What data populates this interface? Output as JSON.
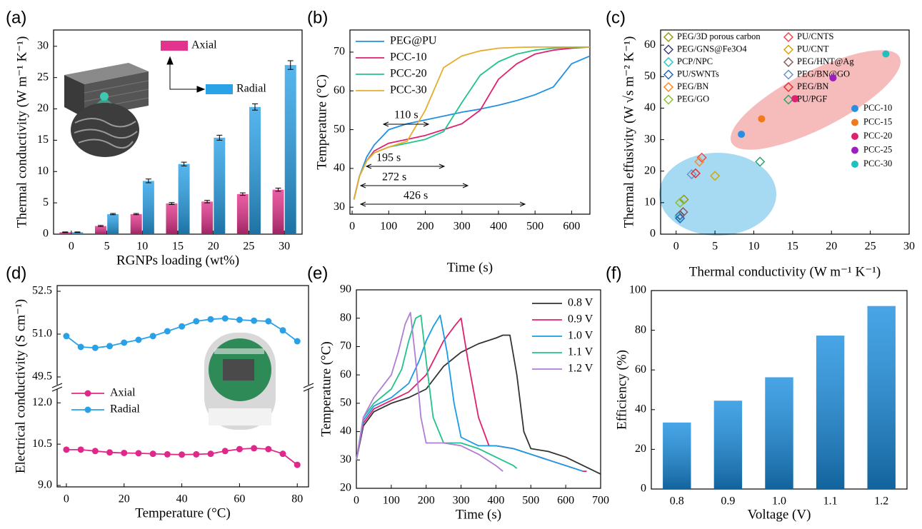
{
  "chart_data": [
    {
      "type": "bar",
      "panel_label": "(a)",
      "xlabel": "RGNPs loading (wt%)",
      "ylabel": "Thermal conductivity (W m⁻¹ K⁻¹)",
      "categories": [
        "0",
        "5",
        "10",
        "15",
        "20",
        "25",
        "30"
      ],
      "series": [
        {
          "name": "Axial",
          "color": "#e2348c",
          "values": [
            0.3,
            1.3,
            3.2,
            4.9,
            5.2,
            6.4,
            7.1
          ],
          "errors": [
            0.05,
            0.1,
            0.1,
            0.15,
            0.2,
            0.2,
            0.25
          ]
        },
        {
          "name": "Radial",
          "color": "#2aa2e8",
          "values": [
            0.3,
            3.2,
            8.5,
            11.2,
            15.4,
            20.3,
            27.0
          ],
          "errors": [
            0.05,
            0.1,
            0.3,
            0.3,
            0.4,
            0.5,
            0.7
          ]
        }
      ],
      "ylim": [
        0,
        32.6
      ],
      "yticks": [
        0,
        5,
        10,
        15,
        20,
        25,
        30
      ]
    },
    {
      "type": "line",
      "panel_label": "(b)",
      "xlabel": "Time (s)",
      "ylabel": "Temperature (°C)",
      "x": [
        5,
        20,
        40,
        60,
        100,
        150,
        200,
        250,
        300,
        350,
        400,
        450,
        500,
        550,
        600,
        650
      ],
      "series": [
        {
          "name": "PEG@PU",
          "color": "#1e90e6",
          "values": [
            32,
            38,
            43,
            46,
            50,
            51.5,
            52.5,
            53.5,
            54.5,
            55.3,
            56.3,
            57.5,
            59,
            61,
            67,
            69
          ]
        },
        {
          "name": "PCC-10",
          "color": "#e0206e",
          "values": [
            32,
            38,
            42,
            44.5,
            46.5,
            47.5,
            48.5,
            50,
            51.5,
            55,
            63,
            67,
            69.5,
            70.5,
            71,
            71.3
          ]
        },
        {
          "name": "PCC-20",
          "color": "#1fc48a",
          "values": [
            32,
            38,
            42,
            44,
            45.5,
            46.5,
            47.5,
            49.5,
            57,
            64,
            67.5,
            69.5,
            70.5,
            71,
            71.2,
            71.3
          ]
        },
        {
          "name": "PCC-30",
          "color": "#e6ac2e",
          "values": [
            32,
            38,
            42,
            44,
            45.5,
            47,
            55,
            66,
            69,
            70.3,
            71,
            71.2,
            71.3,
            71.3,
            71.3,
            71.3
          ]
        }
      ],
      "annotations": [
        "110 s",
        "195 s",
        "272 s",
        "426 s"
      ],
      "xlim": [
        -6,
        650
      ],
      "xticks": [
        0,
        100,
        200,
        300,
        400,
        500,
        600
      ],
      "ylim": [
        28.2,
        75.7
      ],
      "yticks": [
        30,
        40,
        50,
        60,
        70
      ]
    },
    {
      "type": "scatter",
      "panel_label": "(c)",
      "xlabel": "Thermal conductivity (W m⁻¹ K⁻¹)",
      "ylabel": "Thermal effusivity (W √s m⁻² K⁻¹)",
      "series": [
        {
          "name": "PEG/3D porous carbon",
          "color": "#9a9a10",
          "marker": "diamond",
          "x": [
            1.0
          ],
          "values": [
            11
          ]
        },
        {
          "name": "PU/CNTS",
          "color": "#f04848",
          "marker": "diamond",
          "x": [
            3.3
          ],
          "values": [
            24.3
          ]
        },
        {
          "name": "PEG/GNS@Fe3O4",
          "color": "#3c4470",
          "marker": "diamond",
          "x": [
            0.5
          ],
          "values": [
            6
          ]
        },
        {
          "name": "PU/CNT",
          "color": "#d9a400",
          "marker": "diamond",
          "x": [
            5.0
          ],
          "values": [
            18.5
          ]
        },
        {
          "name": "PCP/NPC",
          "color": "#2cc4c4",
          "marker": "diamond",
          "x": [
            0.4
          ],
          "values": [
            5.5
          ]
        },
        {
          "name": "PEG/HNT@Ag",
          "color": "#8a5a5a",
          "marker": "diamond",
          "x": [
            0.9
          ],
          "values": [
            7
          ]
        },
        {
          "name": "PU/SWNTs",
          "color": "#2a62c0",
          "marker": "diamond",
          "x": [
            0.5
          ],
          "values": [
            5
          ]
        },
        {
          "name": "PEG/BN@GO",
          "color": "#6d92c8",
          "marker": "diamond",
          "x": [
            2.0
          ],
          "values": [
            19
          ]
        },
        {
          "name": "PEG/BN",
          "color": "#ff8820",
          "marker": "diamond",
          "x": [
            3.0
          ],
          "values": [
            23
          ]
        },
        {
          "name": "PEG/BN",
          "color": "#e83030",
          "marker": "diamond",
          "x": [
            2.5
          ],
          "values": [
            19.3
          ]
        },
        {
          "name": "PEG/GO",
          "color": "#88c030",
          "marker": "diamond",
          "x": [
            0.5
          ],
          "values": [
            10
          ]
        },
        {
          "name": "PU/PGF",
          "color": "#30a070",
          "marker": "diamond",
          "x": [
            10.8
          ],
          "values": [
            23
          ]
        },
        {
          "name": "PCC-10",
          "color": "#2a8ee0",
          "marker": "circle",
          "x": [
            8.4
          ],
          "values": [
            31.7
          ]
        },
        {
          "name": "PCC-15",
          "color": "#f07a20",
          "marker": "circle",
          "x": [
            11.0
          ],
          "values": [
            36.6
          ]
        },
        {
          "name": "PCC-20",
          "color": "#e0206e",
          "marker": "circle",
          "x": [
            15.3
          ],
          "values": [
            43
          ]
        },
        {
          "name": "PCC-25",
          "color": "#9a1ec0",
          "marker": "circle",
          "x": [
            20.2
          ],
          "values": [
            49.6
          ]
        },
        {
          "name": "PCC-30",
          "color": "#20c0c0",
          "marker": "circle",
          "x": [
            27.0
          ],
          "values": [
            57.2
          ]
        }
      ],
      "xlim": [
        -2,
        30
      ],
      "xticks": [
        0,
        5,
        10,
        15,
        20,
        25,
        30
      ],
      "ylim": [
        0,
        64.8
      ],
      "yticks": [
        0,
        10,
        20,
        30,
        40,
        50,
        60
      ]
    },
    {
      "type": "line",
      "panel_label": "(d)",
      "xlabel": "Temperature (°C)",
      "ylabel": "Electrical conductivity (S cm⁻¹)",
      "x": [
        0,
        5,
        10,
        15,
        20,
        25,
        30,
        35,
        40,
        45,
        50,
        55,
        60,
        65,
        70,
        75,
        80
      ],
      "series": [
        {
          "name": "Axial",
          "color": "#e0288a",
          "marker": "circle",
          "values": [
            10.3,
            10.3,
            10.25,
            10.2,
            10.18,
            10.17,
            10.15,
            10.13,
            10.12,
            10.13,
            10.15,
            10.25,
            10.32,
            10.35,
            10.32,
            10.15,
            9.75
          ]
        },
        {
          "name": "Radial",
          "color": "#2aa0e6",
          "marker": "circle",
          "axis": "y2",
          "values": [
            50.93,
            50.55,
            50.52,
            50.58,
            50.7,
            50.8,
            50.93,
            51.1,
            51.27,
            51.45,
            51.52,
            51.55,
            51.5,
            51.47,
            51.45,
            51.13,
            50.75
          ]
        }
      ],
      "xlim": [
        -3.2,
        83.9
      ],
      "xticks": [
        0,
        20,
        40,
        60,
        80
      ],
      "ylim": [
        9,
        12.5
      ],
      "yticks": [
        {
          "value": 9,
          "label": "9.0"
        },
        10.5,
        {
          "value": 12,
          "label": "12.0"
        }
      ],
      "y2lim": [
        49.2,
        52.7
      ],
      "y2ticks": [
        49.5,
        {
          "value": 51,
          "label": "51.0"
        },
        52.5
      ]
    },
    {
      "type": "line",
      "panel_label": "(e)",
      "xlabel": "Time (s)",
      "ylabel": "Temperature (°C)",
      "series": [
        {
          "name": "0.8 V",
          "color": "#333333",
          "x": [
            0,
            20,
            50,
            100,
            150,
            200,
            250,
            300,
            350,
            400,
            420,
            440,
            460,
            480,
            500,
            550,
            600,
            650,
            700
          ],
          "values": [
            30,
            42,
            47,
            50,
            52,
            55,
            63,
            68,
            71,
            73,
            74,
            74,
            60,
            40,
            34,
            33,
            31,
            28,
            25
          ]
        },
        {
          "name": "0.9 V",
          "color": "#e0206e",
          "x": [
            0,
            20,
            50,
            100,
            150,
            200,
            250,
            280,
            300,
            320,
            350,
            380,
            400,
            450,
            500,
            550,
            600,
            650,
            660
          ],
          "values": [
            30,
            43,
            48,
            51,
            54,
            60,
            72,
            77,
            80,
            65,
            45,
            35,
            35,
            34,
            32,
            30,
            28,
            26,
            26
          ]
        },
        {
          "name": "1.0 V",
          "color": "#1a9be6",
          "x": [
            0,
            20,
            50,
            100,
            150,
            180,
            200,
            220,
            240,
            260,
            280,
            300,
            350,
            400,
            450,
            500,
            550,
            600,
            650
          ],
          "values": [
            30,
            44,
            49,
            52,
            57,
            65,
            72,
            77,
            81,
            68,
            50,
            38,
            35,
            35,
            34,
            32,
            30,
            28,
            26
          ]
        },
        {
          "name": "1.1 V",
          "color": "#22c28a",
          "x": [
            0,
            20,
            50,
            100,
            130,
            150,
            170,
            185,
            200,
            220,
            250,
            300,
            350,
            400,
            450,
            460
          ],
          "values": [
            30,
            45,
            50,
            55,
            62,
            72,
            80,
            81,
            65,
            45,
            36,
            36,
            34,
            31,
            28,
            27
          ]
        },
        {
          "name": "1.2 V",
          "color": "#b07cd6",
          "x": [
            0,
            20,
            50,
            100,
            120,
            140,
            155,
            170,
            185,
            200,
            250,
            300,
            350,
            400,
            420
          ],
          "values": [
            30,
            45,
            52,
            60,
            68,
            78,
            82,
            65,
            45,
            36,
            36,
            35,
            32,
            28,
            26
          ]
        }
      ],
      "xlim": [
        0,
        700
      ],
      "xticks": [
        0,
        100,
        200,
        300,
        400,
        500,
        600,
        700
      ],
      "ylim": [
        20,
        90
      ],
      "yticks": [
        20,
        30,
        40,
        50,
        60,
        70,
        80,
        90
      ]
    },
    {
      "type": "bar",
      "panel_label": "(f)",
      "xlabel": "Voltage (V)",
      "ylabel": "Efficiency (%)",
      "categories": [
        "0.8",
        "0.9",
        "1.0",
        "1.1",
        "1.2"
      ],
      "values": [
        33.5,
        44.5,
        56.3,
        77.3,
        92.2
      ],
      "color": "#1a8ee0",
      "ylim": [
        0,
        100
      ],
      "yticks": [
        0,
        20,
        40,
        60,
        80,
        100
      ]
    }
  ]
}
